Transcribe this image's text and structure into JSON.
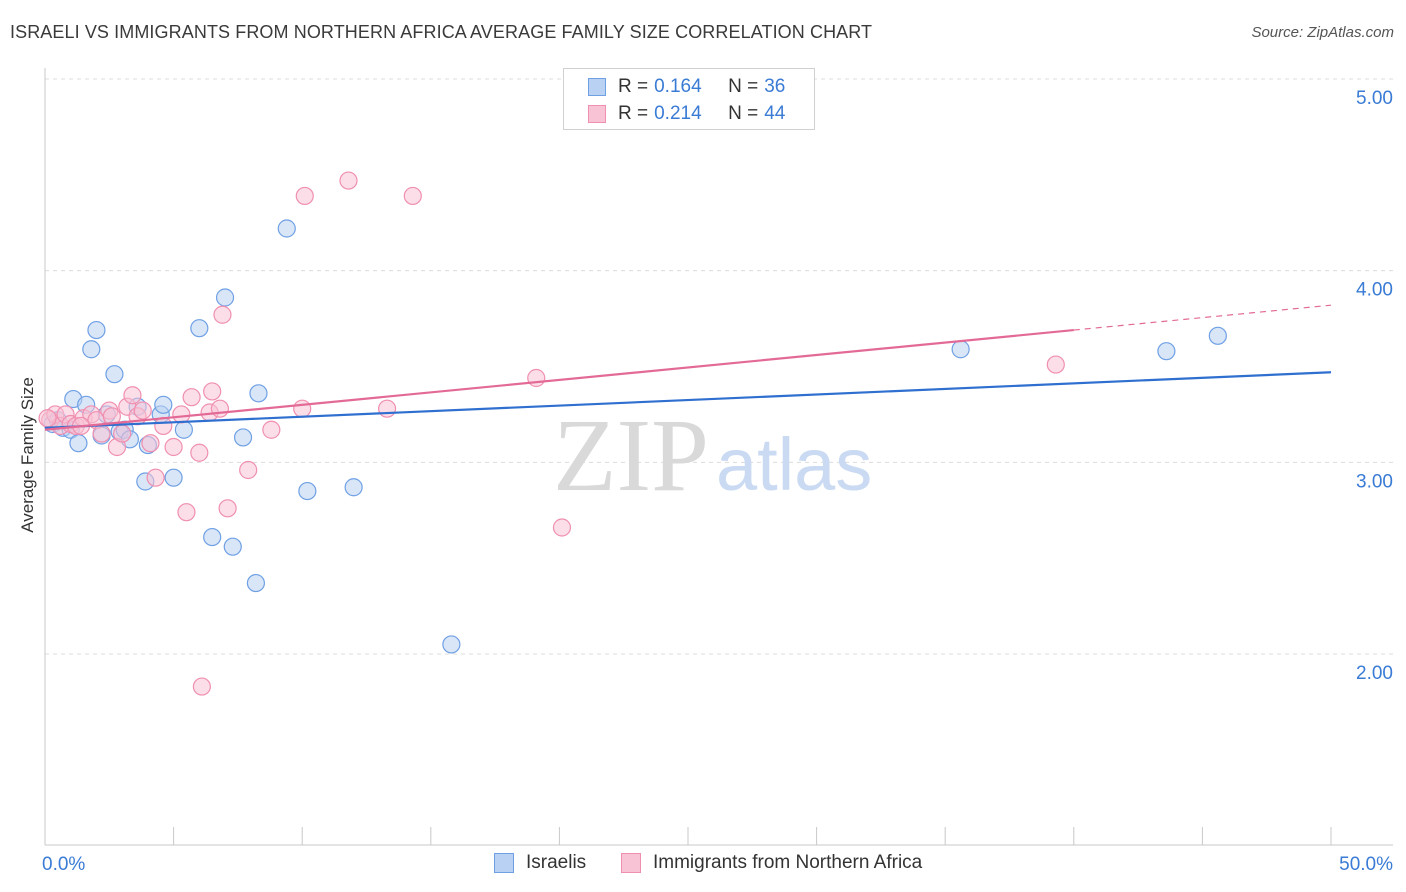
{
  "title": "ISRAELI VS IMMIGRANTS FROM NORTHERN AFRICA AVERAGE FAMILY SIZE CORRELATION CHART",
  "source": "Source: ZipAtlas.com",
  "watermark": {
    "part1": "ZIP",
    "part2": "atlas"
  },
  "legend_top": {
    "rows": [
      {
        "r_label": "R =",
        "r_value": "0.164",
        "n_label": "N =",
        "n_value": "36"
      },
      {
        "r_label": "R =",
        "r_value": "0.214",
        "n_label": "N =",
        "n_value": "44"
      }
    ]
  },
  "legend_bottom": {
    "series1": "Israelis",
    "series2": "Immigrants from Northern Africa"
  },
  "chart_data": {
    "type": "scatter",
    "title": "ISRAELI VS IMMIGRANTS FROM NORTHERN AFRICA AVERAGE FAMILY SIZE CORRELATION CHART",
    "xlabel": "",
    "ylabel": "Average Family Size",
    "xlim": [
      0,
      50
    ],
    "ylim": [
      1.0,
      5.15
    ],
    "x_tick_labels": [
      "0.0%",
      "50.0%"
    ],
    "y_ticks": [
      2.0,
      3.0,
      4.0,
      5.0
    ],
    "y_tick_labels": [
      "2.00",
      "3.00",
      "4.00",
      "5.00"
    ],
    "grid": true,
    "legend_position": "top-center",
    "series": [
      {
        "name": "Israelis",
        "color": "#6fa0e4",
        "fill": "#b9d1f3",
        "line_color": "#2f6fcf",
        "r": 0.164,
        "n": 36,
        "trend": {
          "x": [
            0,
            50
          ],
          "y": [
            3.18,
            3.47
          ]
        },
        "points": [
          [
            0.3,
            3.2
          ],
          [
            0.5,
            3.22
          ],
          [
            0.7,
            3.18
          ],
          [
            1.0,
            3.17
          ],
          [
            1.1,
            3.33
          ],
          [
            1.3,
            3.1
          ],
          [
            1.6,
            3.3
          ],
          [
            1.8,
            3.59
          ],
          [
            2.0,
            3.69
          ],
          [
            2.2,
            3.14
          ],
          [
            2.4,
            3.25
          ],
          [
            2.7,
            3.46
          ],
          [
            2.9,
            3.16
          ],
          [
            3.1,
            3.17
          ],
          [
            3.3,
            3.12
          ],
          [
            3.6,
            3.29
          ],
          [
            3.9,
            2.9
          ],
          [
            4.0,
            3.09
          ],
          [
            4.5,
            3.25
          ],
          [
            4.6,
            3.3
          ],
          [
            5.0,
            2.92
          ],
          [
            5.4,
            3.17
          ],
          [
            6.0,
            3.7
          ],
          [
            6.5,
            2.61
          ],
          [
            7.0,
            3.86
          ],
          [
            7.3,
            2.56
          ],
          [
            7.7,
            3.13
          ],
          [
            8.2,
            2.37
          ],
          [
            8.3,
            3.36
          ],
          [
            9.4,
            4.22
          ],
          [
            10.2,
            2.85
          ],
          [
            12.0,
            2.87
          ],
          [
            15.8,
            2.05
          ],
          [
            35.6,
            3.59
          ],
          [
            43.6,
            3.58
          ],
          [
            45.6,
            3.66
          ]
        ]
      },
      {
        "name": "Immigrants from Northern Africa",
        "color": "#f08fb0",
        "fill": "#f8c3d5",
        "line_color": "#e36a96",
        "r": 0.214,
        "n": 44,
        "trend": {
          "x": [
            0,
            40
          ],
          "y": [
            3.17,
            3.69
          ]
        },
        "trend_dashed": {
          "x": [
            40,
            50
          ],
          "y": [
            3.69,
            3.82
          ]
        },
        "points": [
          [
            0.2,
            3.22
          ],
          [
            0.4,
            3.25
          ],
          [
            0.6,
            3.19
          ],
          [
            0.8,
            3.25
          ],
          [
            1.0,
            3.2
          ],
          [
            1.2,
            3.19
          ],
          [
            1.5,
            3.23
          ],
          [
            1.8,
            3.25
          ],
          [
            2.0,
            3.22
          ],
          [
            2.2,
            3.15
          ],
          [
            2.5,
            3.27
          ],
          [
            2.8,
            3.08
          ],
          [
            3.0,
            3.15
          ],
          [
            3.2,
            3.29
          ],
          [
            3.4,
            3.35
          ],
          [
            3.6,
            3.24
          ],
          [
            3.8,
            3.27
          ],
          [
            4.1,
            3.1
          ],
          [
            4.3,
            2.92
          ],
          [
            4.6,
            3.19
          ],
          [
            5.0,
            3.08
          ],
          [
            5.3,
            3.25
          ],
          [
            5.5,
            2.74
          ],
          [
            5.7,
            3.34
          ],
          [
            6.0,
            3.05
          ],
          [
            6.1,
            1.83
          ],
          [
            6.4,
            3.26
          ],
          [
            6.5,
            3.37
          ],
          [
            6.8,
            3.28
          ],
          [
            6.9,
            3.77
          ],
          [
            7.1,
            2.76
          ],
          [
            7.9,
            2.96
          ],
          [
            8.8,
            3.17
          ],
          [
            10.0,
            3.28
          ],
          [
            10.1,
            4.39
          ],
          [
            11.8,
            4.47
          ],
          [
            13.3,
            3.28
          ],
          [
            14.3,
            4.39
          ],
          [
            19.1,
            3.44
          ],
          [
            20.1,
            2.66
          ],
          [
            39.3,
            3.51
          ],
          [
            0.1,
            3.23
          ],
          [
            1.4,
            3.19
          ],
          [
            2.6,
            3.24
          ]
        ]
      }
    ]
  }
}
